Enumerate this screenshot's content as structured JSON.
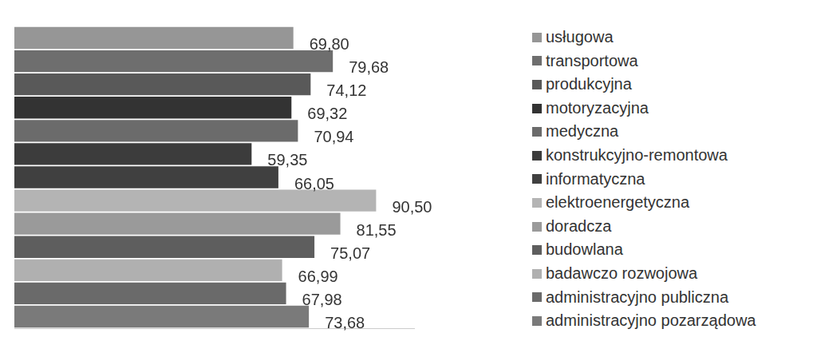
{
  "chart_data": {
    "type": "bar",
    "orientation": "horizontal",
    "categories": [
      "usługowa",
      "transportowa",
      "produkcyjna",
      "motoryzacyjna",
      "medyczna",
      "konstrukcyjno-remontowa",
      "informatyczna",
      "elektroenergetyczna",
      "doradcza",
      "budowlana",
      "badawczo rozwojowa",
      "administracyjno publiczna",
      "administracyjno pozarządowa"
    ],
    "values": [
      69.8,
      79.68,
      74.12,
      69.32,
      70.94,
      59.35,
      66.05,
      90.5,
      81.55,
      75.07,
      66.99,
      67.98,
      73.68
    ],
    "value_labels": [
      "69,80",
      "79,68",
      "74,12",
      "69,32",
      "70,94",
      "59,35",
      "66,05",
      "90,50",
      "81,55",
      "75,07",
      "66,99",
      "67,98",
      "73,68"
    ],
    "colors": [
      "#969696",
      "#6e6e6e",
      "#595959",
      "#333333",
      "#6b6b6b",
      "#3c3c3c",
      "#404040",
      "#b4b4b4",
      "#9a9a9a",
      "#5e5e5e",
      "#b0b0b0",
      "#6a6a6a",
      "#7a7a7a"
    ],
    "data_labels": true,
    "xlim": [
      0,
      100
    ],
    "tick_labels": false,
    "grid": false,
    "legend": "right"
  }
}
